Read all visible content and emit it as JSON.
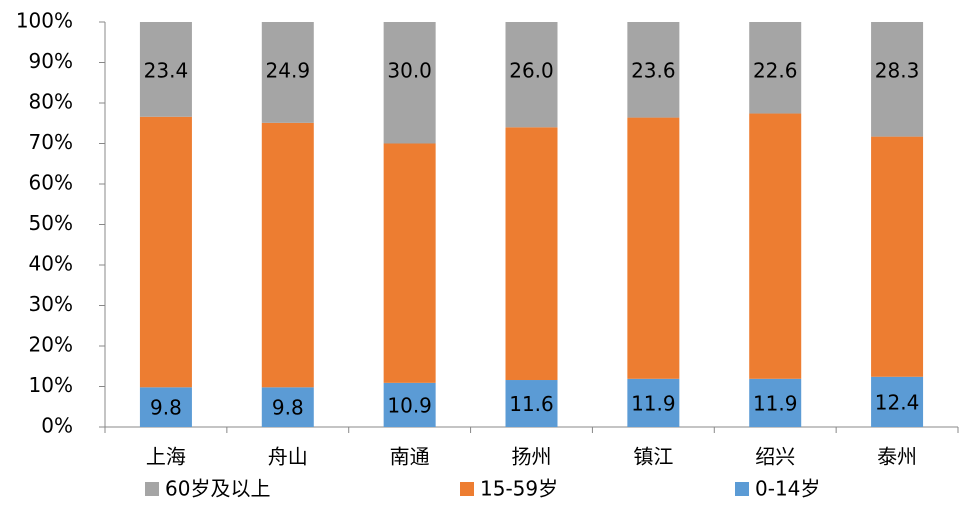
{
  "chart_data": {
    "type": "stacked_bar",
    "categories": [
      "上海",
      "舟山",
      "南通",
      "扬州",
      "镇江",
      "绍兴",
      "泰州"
    ],
    "series": [
      {
        "name": "0-14岁",
        "color": "#5b9bd5",
        "values": [
          9.8,
          9.8,
          10.9,
          11.6,
          11.9,
          11.9,
          12.4
        ]
      },
      {
        "name": "15-59岁",
        "color": "#ed7d31",
        "values": [
          66.8,
          65.3,
          59.1,
          62.4,
          64.5,
          65.5,
          59.3
        ]
      },
      {
        "name": "60岁及以上",
        "color": "#a5a5a5",
        "values": [
          23.4,
          24.9,
          30.0,
          26.0,
          23.6,
          22.6,
          28.3
        ],
        "value_labels": [
          "23.4",
          "24.9",
          "30.0",
          "26.0",
          "23.6",
          "22.6",
          "28.3"
        ]
      }
    ],
    "ylim": [
      0,
      100
    ],
    "yticks": [
      {
        "value": 0,
        "label": "0%"
      },
      {
        "value": 10,
        "label": "10%"
      },
      {
        "value": 20,
        "label": "20%"
      },
      {
        "value": 30,
        "label": "30%"
      },
      {
        "value": 40,
        "label": "40%"
      },
      {
        "value": 50,
        "label": "50%"
      },
      {
        "value": 60,
        "label": "60%"
      },
      {
        "value": 70,
        "label": "70%"
      },
      {
        "value": 80,
        "label": "80%"
      },
      {
        "value": 90,
        "label": "90%"
      },
      {
        "value": 100,
        "label": "100%"
      }
    ],
    "grid": false
  }
}
